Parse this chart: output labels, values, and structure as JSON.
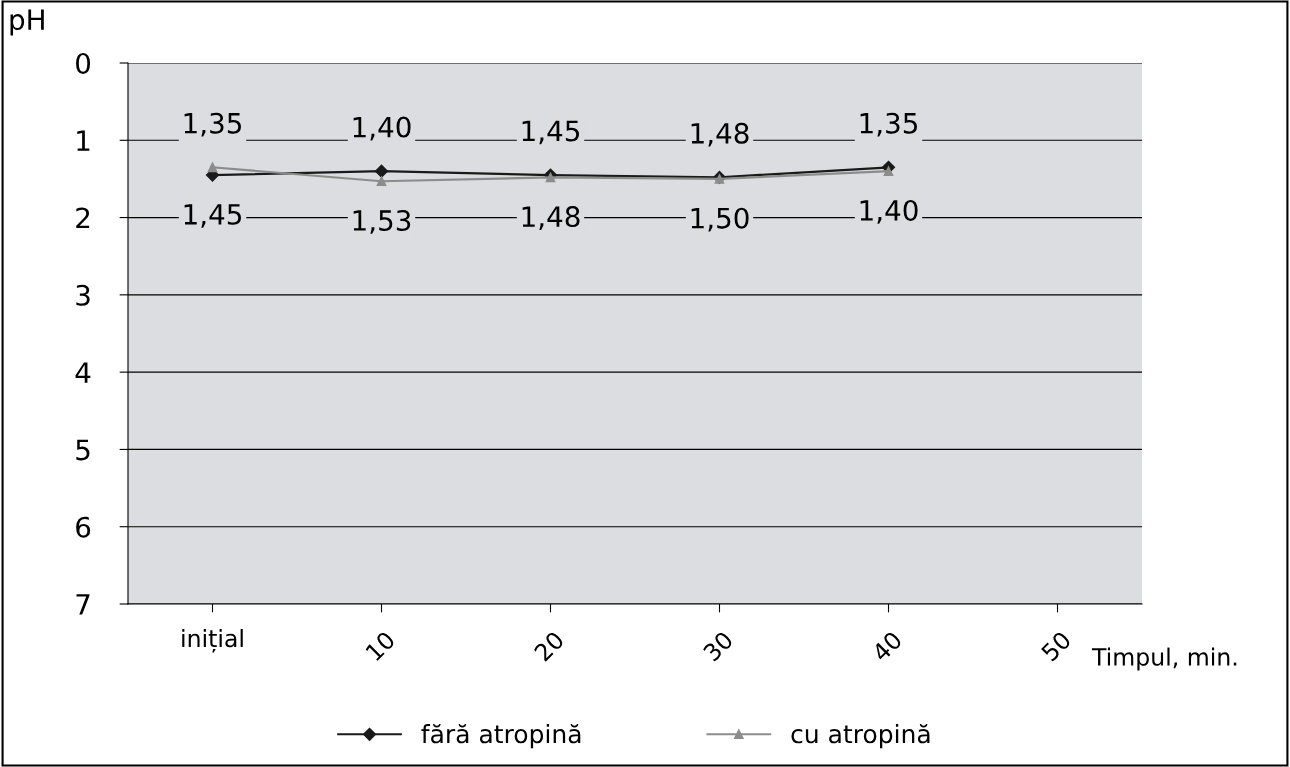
{
  "chart_data": {
    "type": "line",
    "categories": [
      "inițial",
      "10",
      "20",
      "30",
      "40",
      "50"
    ],
    "series": [
      {
        "name": "fără atropină",
        "color": "#1a1a1a",
        "marker": "diamond",
        "values": [
          1.45,
          1.4,
          1.45,
          1.48,
          1.35,
          null
        ],
        "value_labels": [
          "1,45",
          "1,40",
          "1,45",
          "1,48",
          "1,35",
          null
        ]
      },
      {
        "name": "cu atropină",
        "color": "#8c8c8c",
        "marker": "triangle",
        "values": [
          1.35,
          1.53,
          1.48,
          1.5,
          1.4,
          null
        ],
        "value_labels": [
          "1,35",
          "1,53",
          "1,48",
          "1,50",
          "1,40",
          null
        ]
      }
    ],
    "ylabel": "pH",
    "xlabel": "Timpul, min.",
    "ylim": [
      7,
      0
    ],
    "yticks": [
      0,
      1,
      2,
      3,
      4,
      5,
      6,
      7
    ],
    "grid": "y",
    "legend": "bottom",
    "line_style": "solid"
  }
}
